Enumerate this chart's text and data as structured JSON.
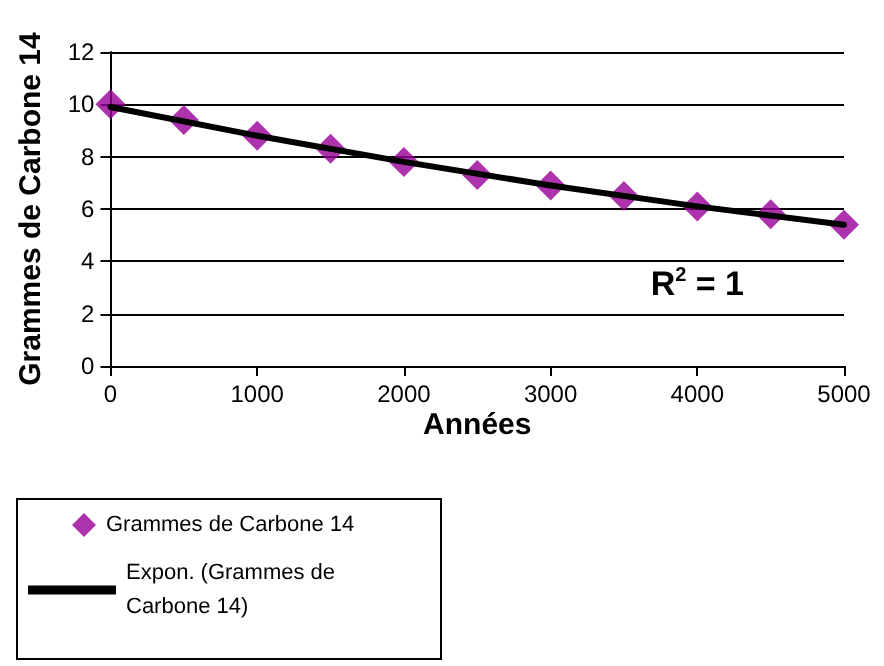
{
  "chart_data": {
    "type": "scatter",
    "xlabel": "Années",
    "ylabel": "Grammes de Carbone 14",
    "series": [
      {
        "name": "Grammes de Carbone 14",
        "color": "#990099",
        "marker": "diamond",
        "x": [
          0,
          500,
          1000,
          1500,
          2000,
          2500,
          3000,
          3500,
          4000,
          4500,
          5000
        ],
        "values": [
          10,
          9.4,
          8.8,
          8.3,
          7.8,
          7.3,
          6.9,
          6.5,
          6.1,
          5.8,
          5.4
        ]
      },
      {
        "name": "Expon. (Grammes de Carbone 14)",
        "type": "line",
        "color": "#000000",
        "marker": "none",
        "line_style": "solid",
        "x": [
          0,
          1000,
          2000,
          3000,
          4000,
          5000
        ],
        "values": [
          9.9,
          8.8,
          7.8,
          6.9,
          6.1,
          5.4
        ]
      }
    ],
    "xlim": [
      0,
      5000
    ],
    "xticks": [
      0,
      1000,
      2000,
      3000,
      4000,
      5000
    ],
    "ylim": [
      0,
      12
    ],
    "yticks": [
      0,
      2,
      4,
      6,
      8,
      10,
      12
    ],
    "grid": "y",
    "legend": "bottom left",
    "annotations": [
      "R$^{2}$ = 1"
    ]
  }
}
